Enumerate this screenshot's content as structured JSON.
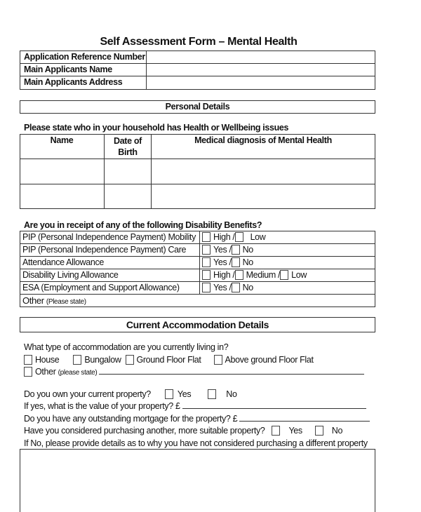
{
  "title": "Self Assessment Form – Mental Health",
  "applicant_table": [
    "Application Reference Number",
    "Main Applicants Name",
    "Main Applicants Address"
  ],
  "personal_details": {
    "heading": "Personal Details",
    "question": "Please state who in your household has Health or Wellbeing issues",
    "columns": [
      "Name",
      "Date of Birth",
      "Medical diagnosis of Mental Health"
    ]
  },
  "benefits": {
    "question": "Are you in receipt of any of the following Disability Benefits?",
    "rows": [
      {
        "label": "PIP (Personal Independence Payment) Mobility",
        "options": [
          "High /",
          "Low"
        ]
      },
      {
        "label": "PIP (Personal Independence Payment) Care",
        "options": [
          "Yes  /",
          "No"
        ]
      },
      {
        "label": "Attendance Allowance",
        "options": [
          "Yes  /",
          "No"
        ]
      },
      {
        "label": "Disability Living Allowance",
        "options": [
          "High /",
          "Medium /",
          "Low"
        ]
      },
      {
        "label": "ESA (Employment and Support Allowance)",
        "options": [
          "Yes  /",
          "No"
        ]
      }
    ],
    "other": "Other",
    "other_note": "(Please state)"
  },
  "accommodation": {
    "heading": "Current Accommodation Details",
    "type_question": "What type of accommodation are you currently living in?",
    "types": [
      "House",
      "Bungalow",
      "Ground Floor Flat",
      "Above ground Floor Flat"
    ],
    "other": "Other",
    "other_note": "(please state)",
    "own_question": "Do you own your current property?",
    "yes": "Yes",
    "no": "No",
    "value_question": "If yes, what is the value of your property?  £",
    "mortgage_question": "Do you have any outstanding mortgage for the property? £",
    "purchase_question": "Have you considered purchasing another, more suitable property?",
    "details_question": "If No, please provide details as to why you have not considered purchasing a different property"
  }
}
